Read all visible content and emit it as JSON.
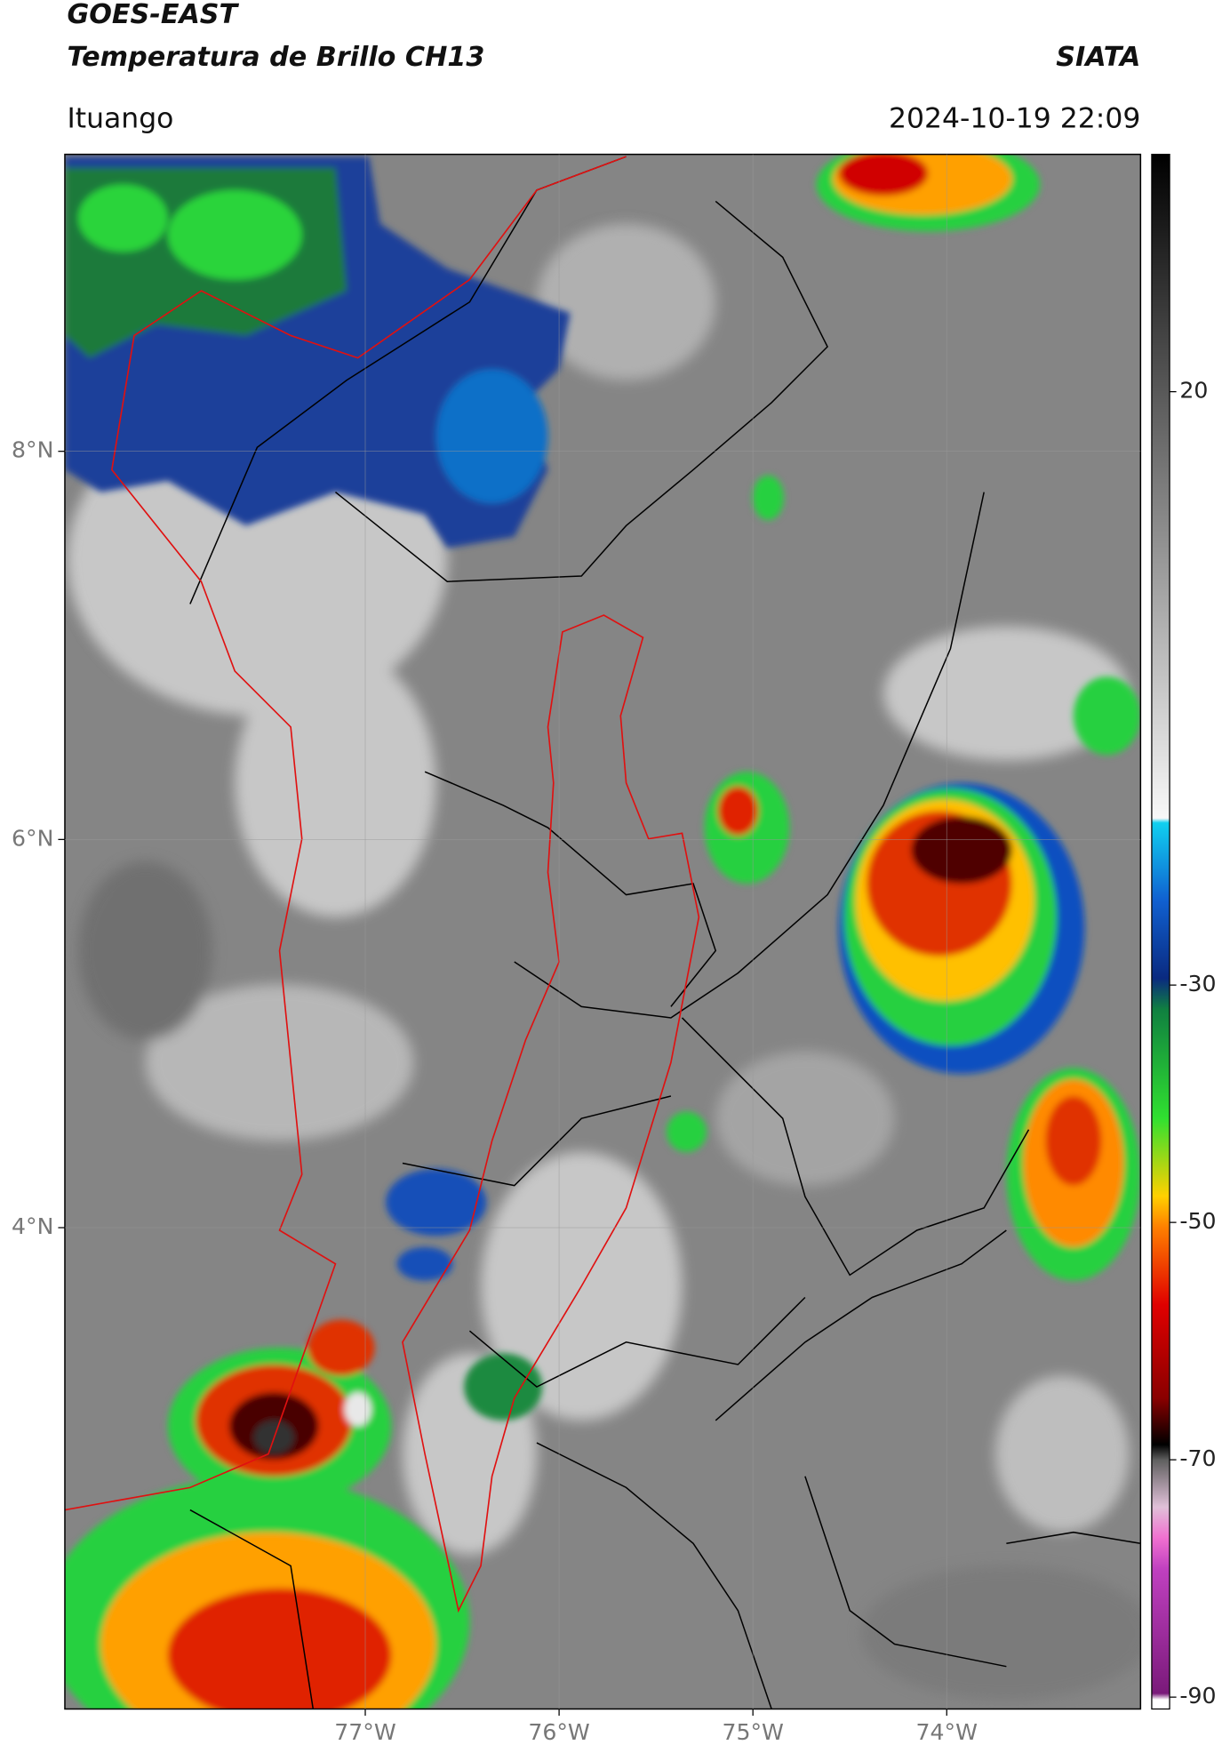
{
  "header": {
    "title": "GOES-EAST",
    "subtitle": "Temperatura de Brillo CH13",
    "source": "SIATA",
    "location": "Ituango",
    "datetime": "2024-10-19 22:09"
  },
  "map": {
    "xlim": [
      -78.55,
      -73.0
    ],
    "ylim": [
      1.52,
      9.53
    ],
    "xticks": [
      {
        "value": -77,
        "label": "77°W"
      },
      {
        "value": -76,
        "label": "76°W"
      },
      {
        "value": -75,
        "label": "75°W"
      },
      {
        "value": -74,
        "label": "74°W"
      }
    ],
    "yticks": [
      {
        "value": 8,
        "label": "8°N"
      },
      {
        "value": 6,
        "label": "6°N"
      },
      {
        "value": 4,
        "label": "4°N"
      }
    ],
    "grid": true
  },
  "colorbar": {
    "clim": [
      -91,
      40
    ],
    "ticks": [
      20,
      -30,
      -50,
      -70,
      -90
    ]
  }
}
